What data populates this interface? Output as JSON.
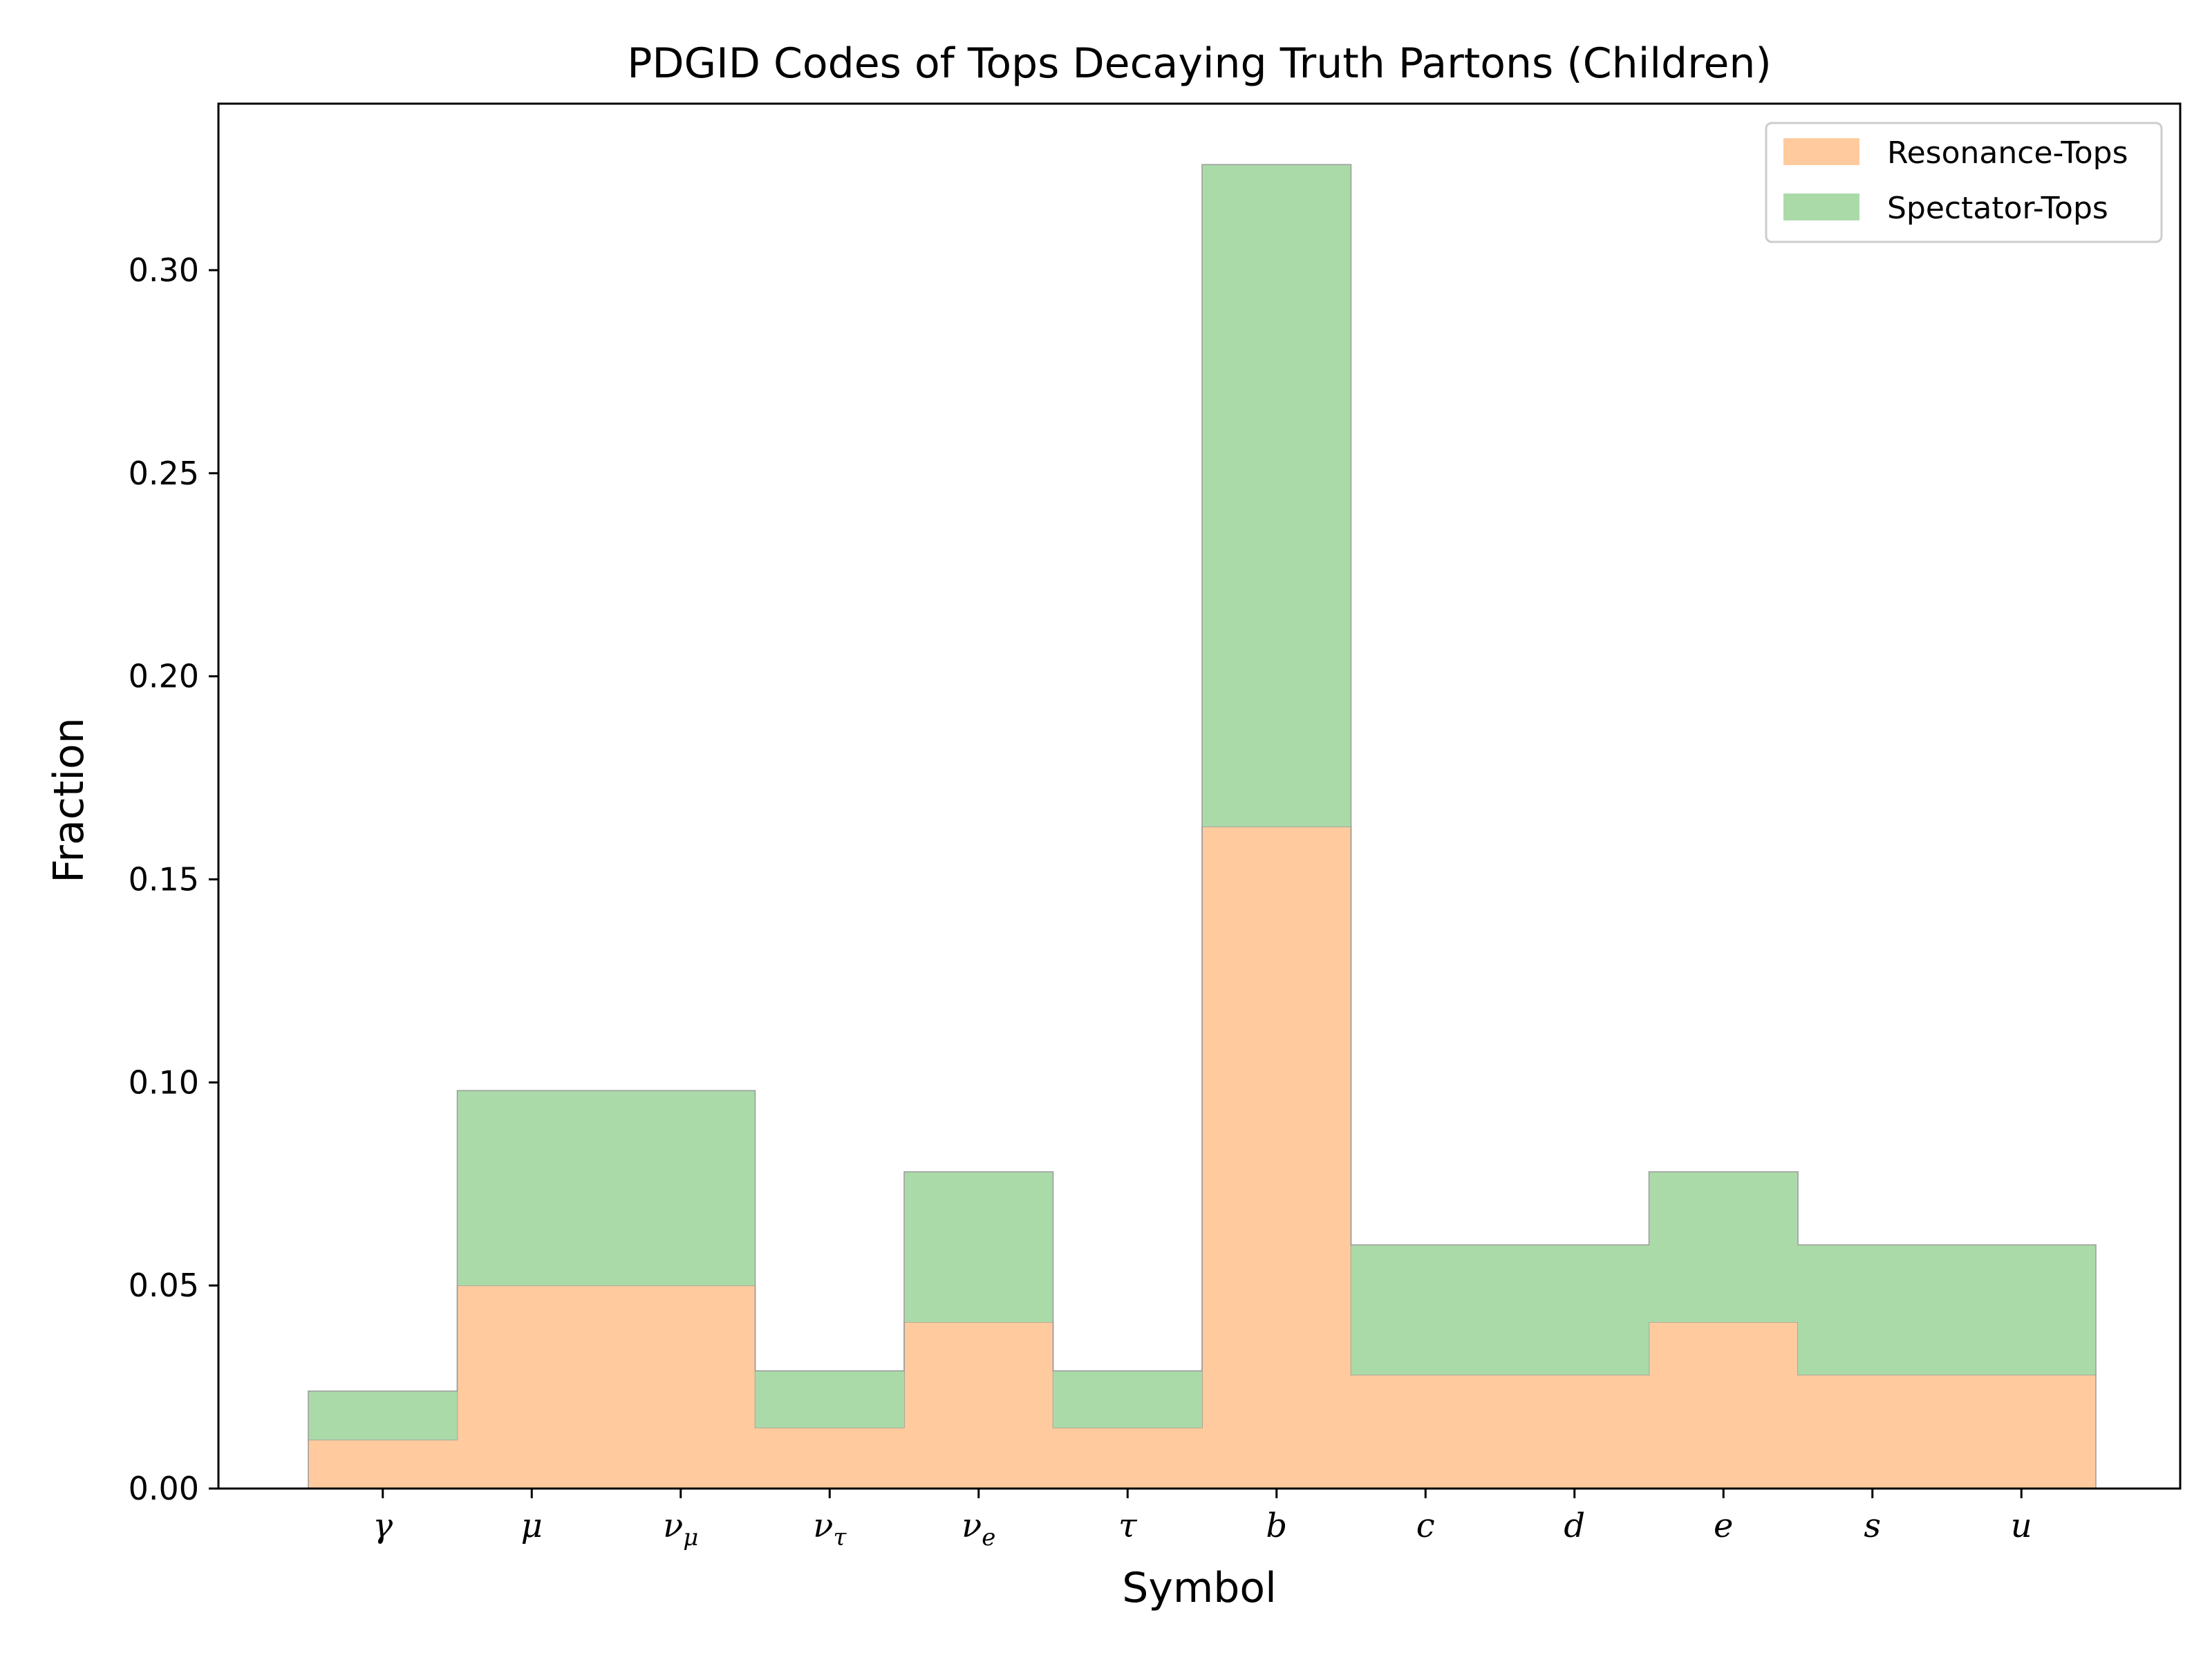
{
  "chart_data": {
    "type": "bar",
    "stacked": true,
    "histtype": "stepfilled",
    "title": "PDGID Codes of Tops Decaying Truth Partons (Children)",
    "xlabel": "Symbol",
    "ylabel": "Fraction",
    "categories": [
      "γ",
      "μ",
      "ν_μ",
      "ν_τ",
      "ν_e",
      "τ",
      "b",
      "c",
      "d",
      "e",
      "s",
      "u"
    ],
    "category_labels": [
      {
        "base": "γ",
        "sub": ""
      },
      {
        "base": "μ",
        "sub": ""
      },
      {
        "base": "ν",
        "sub": "μ"
      },
      {
        "base": "ν",
        "sub": "τ"
      },
      {
        "base": "ν",
        "sub": "e"
      },
      {
        "base": "τ",
        "sub": ""
      },
      {
        "base": "b",
        "sub": ""
      },
      {
        "base": "c",
        "sub": ""
      },
      {
        "base": "d",
        "sub": ""
      },
      {
        "base": "e",
        "sub": ""
      },
      {
        "base": "s",
        "sub": ""
      },
      {
        "base": "u",
        "sub": ""
      }
    ],
    "series": [
      {
        "name": "Resonance-Tops",
        "color": "#ffcb9e",
        "values": [
          0.012,
          0.05,
          0.05,
          0.015,
          0.041,
          0.015,
          0.163,
          0.028,
          0.028,
          0.041,
          0.028,
          0.028
        ]
      },
      {
        "name": "Spectator-Tops",
        "color": "#abdaa9",
        "values": [
          0.012,
          0.048,
          0.048,
          0.014,
          0.037,
          0.014,
          0.163,
          0.032,
          0.032,
          0.037,
          0.032,
          0.032
        ]
      }
    ],
    "ylim": [
      0,
      0.341
    ],
    "yticks": [
      "0.00",
      "0.05",
      "0.10",
      "0.15",
      "0.20",
      "0.25",
      "0.30"
    ],
    "ytick_values": [
      0,
      0.05,
      0.1,
      0.15,
      0.2,
      0.25,
      0.3
    ],
    "legend_position": "top-right",
    "grid": false
  }
}
